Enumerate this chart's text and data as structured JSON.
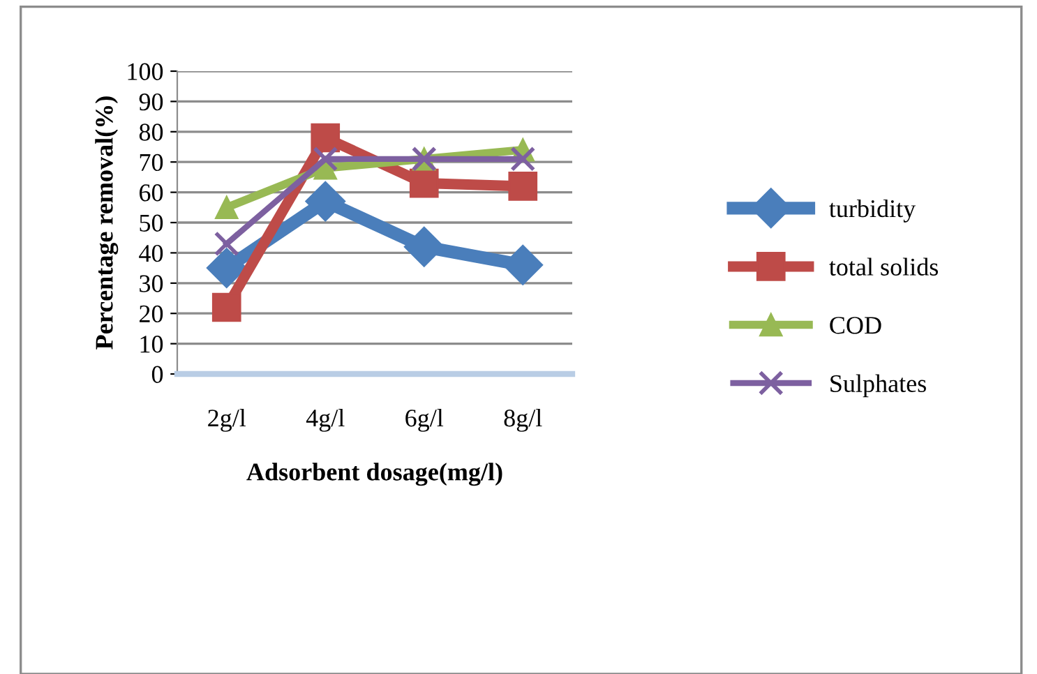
{
  "chart_data": {
    "type": "line",
    "xlabel": "Adsorbent dosage(mg/l)",
    "ylabel": "Percentage removal(%)",
    "categories": [
      "2g/l",
      "4g/l",
      "6g/l",
      "8g/l"
    ],
    "series": [
      {
        "name": "turbidity",
        "color": "#4a7ebb",
        "marker": "diamond",
        "values": [
          35,
          57,
          42,
          36
        ]
      },
      {
        "name": "total solids",
        "color": "#be4b48",
        "marker": "square",
        "values": [
          22,
          78,
          63,
          62
        ]
      },
      {
        "name": "COD",
        "color": "#98b954",
        "marker": "triangle",
        "values": [
          55,
          68,
          71,
          74
        ]
      },
      {
        "name": "Sulphates",
        "color": "#7d60a0",
        "marker": "cross",
        "values": [
          43,
          71,
          71,
          71
        ]
      }
    ],
    "ylim": [
      0,
      100
    ],
    "yticks": [
      0,
      10,
      20,
      30,
      40,
      50,
      60,
      70,
      80,
      90,
      100
    ],
    "grid": "y",
    "legend": "right"
  }
}
